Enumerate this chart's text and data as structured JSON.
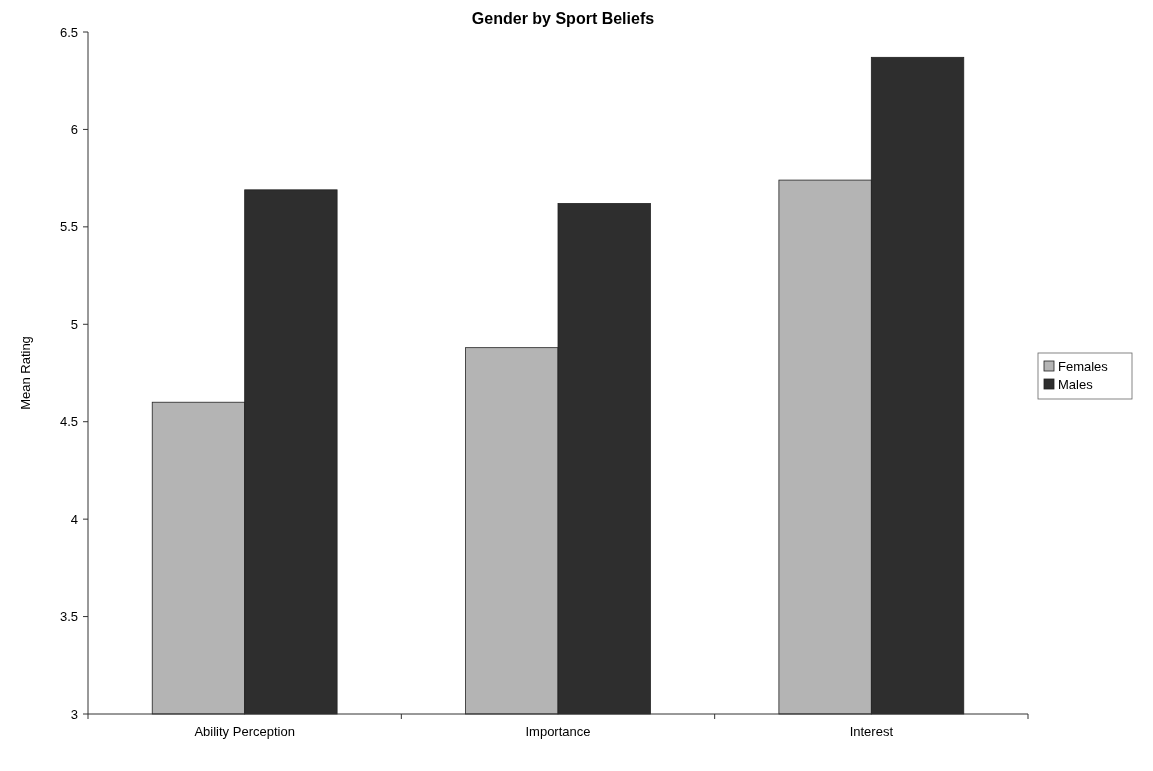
{
  "chart_data": {
    "type": "bar",
    "title": "Gender by Sport Beliefs",
    "ylabel": "Mean Rating",
    "categories": [
      "Ability Perception",
      "Importance",
      "Interest"
    ],
    "series": [
      {
        "name": "Females",
        "color": "#b4b4b4",
        "values": [
          4.6,
          4.88,
          5.74
        ]
      },
      {
        "name": "Males",
        "color": "#2e2e2e",
        "values": [
          5.69,
          5.62,
          6.37
        ]
      }
    ],
    "ylim": [
      3,
      6.5
    ],
    "yticks": [
      3,
      3.5,
      4,
      4.5,
      5,
      5.5,
      6,
      6.5
    ],
    "legend": "right",
    "grid": false
  }
}
